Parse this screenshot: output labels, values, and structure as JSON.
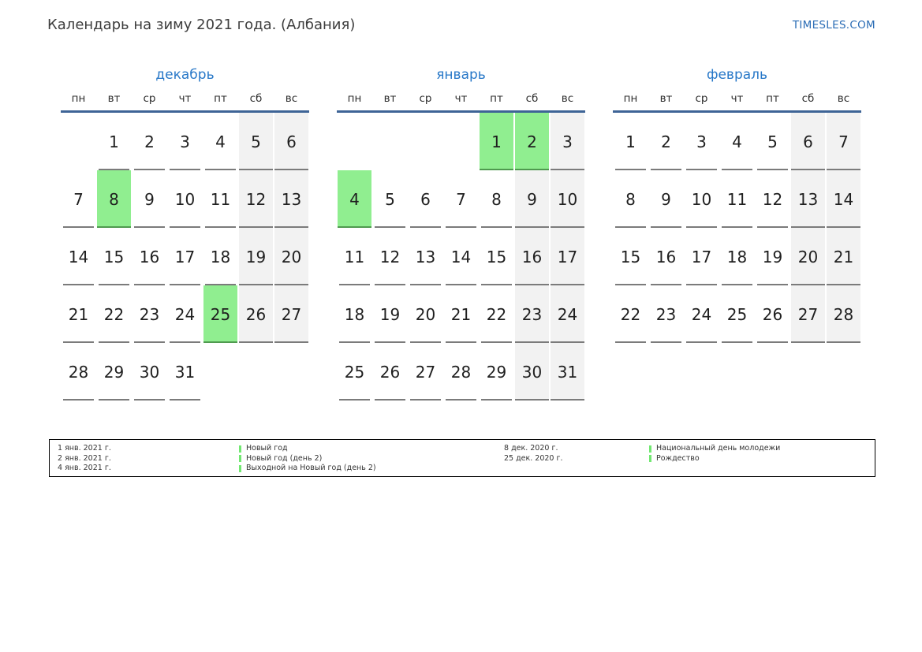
{
  "page": {
    "title": "Календарь на зиму 2021 года. (Албания)",
    "site_link": "TIMESLES.COM"
  },
  "colors": {
    "month_title_blue": "#2878c8",
    "header_line_blue": "#3e6496",
    "link_blue": "#2a6cb5",
    "holiday_green": "#90ee90",
    "holiday_underline_green": "#4f9a4f",
    "weekend_gray": "#f2f2f2",
    "underline_gray": "#7b7b7b",
    "legend_bar_green": "#72e872"
  },
  "calendar": {
    "weekday_headers": [
      "пн",
      "вт",
      "ср",
      "чт",
      "пт",
      "сб",
      "вс"
    ],
    "months": [
      {
        "name": "декабрь",
        "weeks": [
          [
            null,
            1,
            2,
            3,
            4,
            5,
            6
          ],
          [
            7,
            8,
            9,
            10,
            11,
            12,
            13
          ],
          [
            14,
            15,
            16,
            17,
            18,
            19,
            20
          ],
          [
            21,
            22,
            23,
            24,
            25,
            26,
            27
          ],
          [
            28,
            29,
            30,
            31,
            null,
            null,
            null
          ]
        ],
        "holidays": [
          8,
          25
        ]
      },
      {
        "name": "январь",
        "weeks": [
          [
            null,
            null,
            null,
            null,
            1,
            2,
            3
          ],
          [
            4,
            5,
            6,
            7,
            8,
            9,
            10
          ],
          [
            11,
            12,
            13,
            14,
            15,
            16,
            17
          ],
          [
            18,
            19,
            20,
            21,
            22,
            23,
            24
          ],
          [
            25,
            26,
            27,
            28,
            29,
            30,
            31
          ]
        ],
        "holidays": [
          1,
          2,
          4
        ]
      },
      {
        "name": "февраль",
        "weeks": [
          [
            1,
            2,
            3,
            4,
            5,
            6,
            7
          ],
          [
            8,
            9,
            10,
            11,
            12,
            13,
            14
          ],
          [
            15,
            16,
            17,
            18,
            19,
            20,
            21
          ],
          [
            22,
            23,
            24,
            25,
            26,
            27,
            28
          ]
        ],
        "holidays": []
      }
    ]
  },
  "legend": {
    "groups": [
      {
        "entries": [
          {
            "date": "1 янв. 2021 г.",
            "label": "Новый год"
          },
          {
            "date": "2 янв. 2021 г.",
            "label": "Новый год (день 2)"
          },
          {
            "date": "4 янв. 2021 г.",
            "label": "Выходной на Новый год (день 2)"
          }
        ]
      },
      {
        "entries": [
          {
            "date": "8 дек. 2020 г.",
            "label": "Национальный день молодежи"
          },
          {
            "date": "25 дек. 2020 г.",
            "label": "Рождество"
          }
        ]
      }
    ]
  }
}
